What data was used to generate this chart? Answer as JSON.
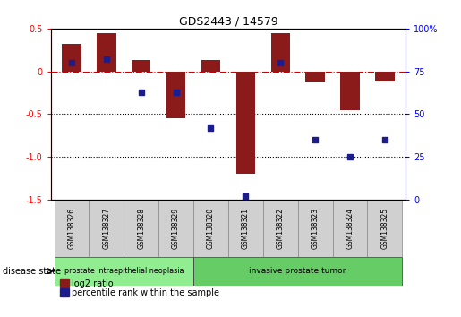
{
  "title": "GDS2443 / 14579",
  "samples": [
    "GSM138326",
    "GSM138327",
    "GSM138328",
    "GSM138329",
    "GSM138320",
    "GSM138321",
    "GSM138322",
    "GSM138323",
    "GSM138324",
    "GSM138325"
  ],
  "log2_ratio": [
    0.32,
    0.45,
    0.13,
    -0.55,
    0.13,
    -1.2,
    0.45,
    -0.13,
    -0.45,
    -0.12
  ],
  "percentile_rank": [
    80,
    82,
    63,
    63,
    42,
    2,
    80,
    35,
    25,
    35
  ],
  "disease_groups": [
    {
      "label": "prostate intraepithelial neoplasia",
      "n_samples": 4,
      "color": "#90EE90"
    },
    {
      "label": "invasive prostate tumor",
      "n_samples": 6,
      "color": "#66CC66"
    }
  ],
  "ylim_left": [
    -1.5,
    0.5
  ],
  "ylim_right": [
    0,
    100
  ],
  "yticks_left": [
    -1.5,
    -1.0,
    -0.5,
    0.0,
    0.5
  ],
  "yticks_right": [
    0,
    25,
    50,
    75,
    100
  ],
  "bar_color": "#8B1A1A",
  "dot_color": "#1C1C8C",
  "zero_line_color": "#CC0000",
  "dotted_line_color": "#000000",
  "sample_box_color": "#D0D0D0",
  "bar_width": 0.55,
  "figsize": [
    5.15,
    3.54
  ],
  "dpi": 100
}
